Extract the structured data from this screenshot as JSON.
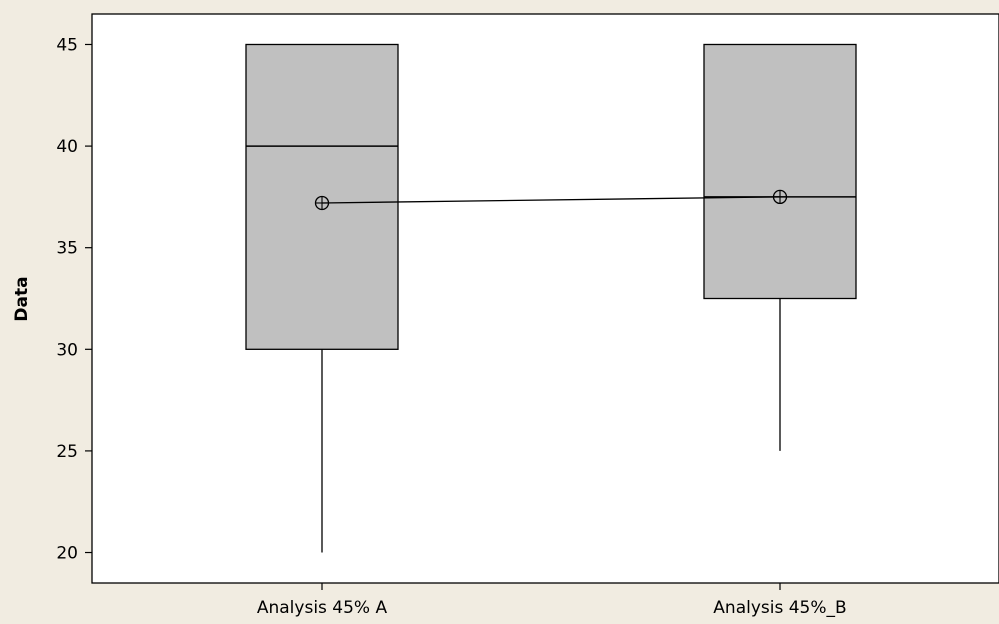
{
  "chart_data": {
    "type": "boxplot",
    "title": "",
    "xlabel": "",
    "ylabel": "Data",
    "ylim": [
      18.5,
      46.5
    ],
    "yticks": [
      20,
      25,
      30,
      35,
      40,
      45
    ],
    "grid": false,
    "legend": "none",
    "categories": [
      "Analysis 45% A",
      "Analysis 45%_B"
    ],
    "boxes": [
      {
        "category": "Analysis 45% A",
        "min": 20,
        "q1": 30,
        "median": 40,
        "q3": 45,
        "max": 45,
        "mean": 37.2
      },
      {
        "category": "Analysis 45%_B",
        "min": 25,
        "q1": 32.5,
        "median": 37.5,
        "q3": 45,
        "max": 45,
        "mean": 37.5
      }
    ],
    "mean_connect_line": true,
    "colors": {
      "box_fill": "#c0c0c0",
      "stroke": "#000000",
      "plot_background": "#ffffff",
      "page_background": "#f1ece1"
    }
  }
}
